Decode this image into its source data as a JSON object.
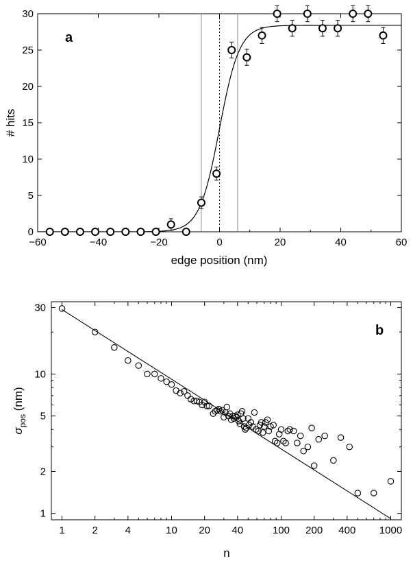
{
  "chart_data": [
    {
      "panel": "a",
      "type": "scatter",
      "panel_label": "a",
      "xlabel": "edge position (nm)",
      "ylabel": "# hits",
      "xlim": [
        -60,
        60
      ],
      "ylim": [
        0,
        30
      ],
      "x_ticks": [
        -60,
        -40,
        -20,
        0,
        20,
        40,
        60
      ],
      "y_ticks": [
        0,
        5,
        10,
        15,
        20,
        25,
        30
      ],
      "points": [
        {
          "x": -56,
          "y": 0,
          "err": 0.4
        },
        {
          "x": -51,
          "y": 0,
          "err": 0.4
        },
        {
          "x": -46,
          "y": 0,
          "err": 0.4
        },
        {
          "x": -41,
          "y": 0,
          "err": 0.4
        },
        {
          "x": -36,
          "y": 0,
          "err": 0.4
        },
        {
          "x": -31,
          "y": 0,
          "err": 0.4
        },
        {
          "x": -26,
          "y": 0,
          "err": 0.4
        },
        {
          "x": -21,
          "y": 0,
          "err": 0.4
        },
        {
          "x": -16,
          "y": 1,
          "err": 0.8
        },
        {
          "x": -11,
          "y": 0,
          "err": 0.4
        },
        {
          "x": -6,
          "y": 4,
          "err": 0.8
        },
        {
          "x": -1,
          "y": 8,
          "err": 0.9
        },
        {
          "x": 4,
          "y": 25,
          "err": 1.1
        },
        {
          "x": 9,
          "y": 24,
          "err": 1.1
        },
        {
          "x": 14,
          "y": 27,
          "err": 1.1
        },
        {
          "x": 19,
          "y": 30,
          "err": 1.1
        },
        {
          "x": 24,
          "y": 28,
          "err": 1.1
        },
        {
          "x": 29,
          "y": 30,
          "err": 1.1
        },
        {
          "x": 34,
          "y": 28,
          "err": 1.1
        },
        {
          "x": 39,
          "y": 28,
          "err": 1.1
        },
        {
          "x": 44,
          "y": 30,
          "err": 1.1
        },
        {
          "x": 49,
          "y": 30,
          "err": 1.1
        },
        {
          "x": 54,
          "y": 27,
          "err": 1.1
        }
      ],
      "fit": {
        "type": "sigmoid",
        "amplitude": 28.4,
        "center": 0,
        "width": 3.3
      },
      "vertical_lines": [
        {
          "x": -6,
          "style": "solid"
        },
        {
          "x": 0,
          "style": "dotted"
        },
        {
          "x": 6,
          "style": "solid"
        }
      ],
      "grid": false,
      "legend": "none"
    },
    {
      "panel": "b",
      "type": "scatter",
      "panel_label": "b",
      "xlabel": "n",
      "ylabel": "σ",
      "ylabel_subscript": "pos",
      "ylabel_unit": " (nm)",
      "xscale": "log",
      "yscale": "log",
      "xlim": [
        0.8,
        1250
      ],
      "ylim": [
        0.9,
        33
      ],
      "x_ticks": [
        1,
        2,
        4,
        10,
        20,
        40,
        100,
        200,
        400,
        1000
      ],
      "y_ticks": [
        1,
        2,
        5,
        10,
        30
      ],
      "points": [
        [
          1,
          29.5
        ],
        [
          2,
          20
        ],
        [
          3,
          15.5
        ],
        [
          4,
          12.5
        ],
        [
          5,
          11.5
        ],
        [
          6,
          10
        ],
        [
          7,
          10
        ],
        [
          8,
          9.3
        ],
        [
          9,
          8.8
        ],
        [
          10,
          8.4
        ],
        [
          11,
          7.6
        ],
        [
          12,
          7.3
        ],
        [
          13,
          7.5
        ],
        [
          14,
          7.0
        ],
        [
          15,
          6.6
        ],
        [
          16,
          6.4
        ],
        [
          17,
          6.4
        ],
        [
          18,
          6.3
        ],
        [
          19,
          6.0
        ],
        [
          20,
          6.3
        ],
        [
          21,
          5.9
        ],
        [
          22,
          5.9
        ],
        [
          24,
          5.2
        ],
        [
          25,
          5.4
        ],
        [
          26,
          5.5
        ],
        [
          27,
          5.6
        ],
        [
          28,
          5.4
        ],
        [
          29,
          5.5
        ],
        [
          30,
          4.9
        ],
        [
          31,
          5.3
        ],
        [
          32,
          5.8
        ],
        [
          33,
          5.0
        ],
        [
          34,
          5.2
        ],
        [
          35,
          4.7
        ],
        [
          36,
          5.0
        ],
        [
          37,
          4.8
        ],
        [
          38,
          5.0
        ],
        [
          39,
          4.9
        ],
        [
          40,
          5.1
        ],
        [
          41,
          4.6
        ],
        [
          42,
          4.4
        ],
        [
          43,
          5.2
        ],
        [
          44,
          5.4
        ],
        [
          45,
          4.8
        ],
        [
          46,
          4.2
        ],
        [
          47,
          4.0
        ],
        [
          48,
          4.1
        ],
        [
          50,
          4.8
        ],
        [
          51,
          4.3
        ],
        [
          53,
          4.5
        ],
        [
          55,
          4.2
        ],
        [
          57,
          5.3
        ],
        [
          59,
          4.0
        ],
        [
          62,
          3.9
        ],
        [
          64,
          4.3
        ],
        [
          66,
          4.5
        ],
        [
          68,
          3.8
        ],
        [
          70,
          4.2
        ],
        [
          72,
          4.5
        ],
        [
          75,
          4.7
        ],
        [
          77,
          3.9
        ],
        [
          80,
          4.2
        ],
        [
          85,
          4.3
        ],
        [
          88,
          3.3
        ],
        [
          92,
          3.2
        ],
        [
          96,
          3.7
        ],
        [
          100,
          4.0
        ],
        [
          105,
          3.3
        ],
        [
          110,
          3.2
        ],
        [
          115,
          3.9
        ],
        [
          120,
          4.0
        ],
        [
          130,
          3.9
        ],
        [
          140,
          3.2
        ],
        [
          150,
          3.6
        ],
        [
          160,
          2.8
        ],
        [
          175,
          3.0
        ],
        [
          190,
          4.1
        ],
        [
          200,
          2.2
        ],
        [
          220,
          3.4
        ],
        [
          250,
          3.6
        ],
        [
          300,
          2.4
        ],
        [
          350,
          3.5
        ],
        [
          420,
          3.0
        ],
        [
          500,
          1.4
        ],
        [
          700,
          1.4
        ],
        [
          1000,
          1.7
        ]
      ],
      "fit": {
        "type": "power",
        "coefficient": 29,
        "exponent": -0.5
      },
      "grid": false,
      "legend": "none"
    }
  ]
}
